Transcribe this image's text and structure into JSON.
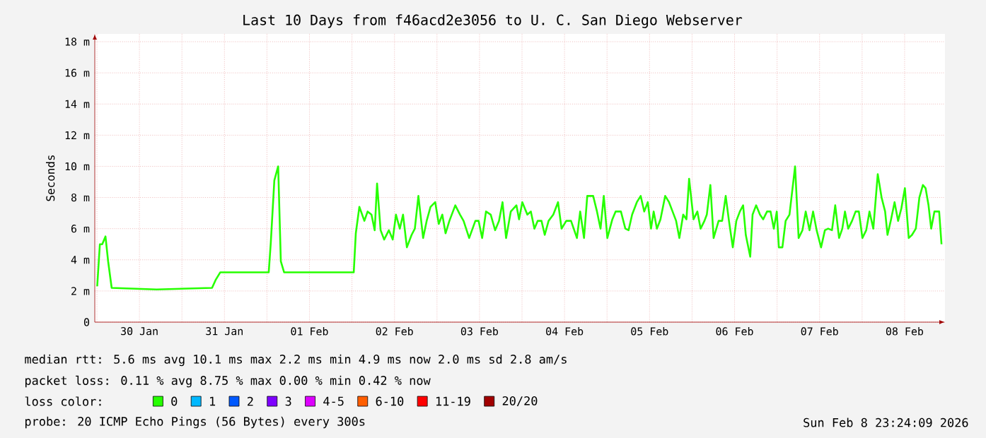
{
  "chart_data": {
    "type": "line",
    "title": "Last 10 Days from f46acd2e3056 to U. C. San Diego Webserver",
    "ylabel": "Seconds",
    "x": [
      "2026-01-30T00:05",
      "2026-01-30T00:50",
      "2026-01-30T01:30",
      "2026-01-30T02:25",
      "2026-01-30T03:10",
      "2026-01-30T04:10",
      "2026-01-30T16:50",
      "2026-01-31T08:30",
      "2026-01-31T09:30",
      "2026-01-31T10:50",
      "2026-02-01T00:30",
      "2026-02-01T01:05",
      "2026-02-01T02:05",
      "2026-02-01T03:10",
      "2026-02-01T03:55",
      "2026-02-01T04:50",
      "2026-02-02T00:30",
      "2026-02-02T01:05",
      "2026-02-02T02:05",
      "2026-02-02T03:30",
      "2026-02-02T04:25",
      "2026-02-02T05:30",
      "2026-02-02T06:25",
      "2026-02-02T07:05",
      "2026-02-02T08:05",
      "2026-02-02T09:05",
      "2026-02-02T10:25",
      "2026-02-02T11:30",
      "2026-02-02T12:25",
      "2026-02-02T13:30",
      "2026-02-02T14:25",
      "2026-02-02T15:30",
      "2026-02-02T16:50",
      "2026-02-02T17:45",
      "2026-02-02T18:45",
      "2026-02-02T20:05",
      "2026-02-02T21:05",
      "2026-02-02T22:10",
      "2026-02-02T23:30",
      "2026-02-03T00:30",
      "2026-02-03T01:30",
      "2026-02-03T02:25",
      "2026-02-03T03:30",
      "2026-02-03T05:10",
      "2026-02-03T06:30",
      "2026-02-03T07:30",
      "2026-02-03T09:05",
      "2026-02-03T10:50",
      "2026-02-03T11:45",
      "2026-02-03T12:45",
      "2026-02-03T13:50",
      "2026-02-03T15:10",
      "2026-02-03T16:25",
      "2026-02-03T17:30",
      "2026-02-03T18:30",
      "2026-02-03T19:30",
      "2026-02-03T20:50",
      "2026-02-03T22:25",
      "2026-02-03T23:10",
      "2026-02-04T00:05",
      "2026-02-04T01:30",
      "2026-02-04T02:30",
      "2026-02-04T03:30",
      "2026-02-04T04:25",
      "2026-02-04T05:30",
      "2026-02-04T06:25",
      "2026-02-04T07:30",
      "2026-02-04T08:50",
      "2026-02-04T10:10",
      "2026-02-04T11:10",
      "2026-02-04T12:30",
      "2026-02-04T13:50",
      "2026-02-04T15:30",
      "2026-02-04T16:25",
      "2026-02-04T17:30",
      "2026-02-04T18:25",
      "2026-02-04T20:05",
      "2026-02-04T21:10",
      "2026-02-04T22:10",
      "2026-02-04T23:05",
      "2026-02-05T00:05",
      "2026-02-05T01:30",
      "2026-02-05T02:25",
      "2026-02-05T03:55",
      "2026-02-05T05:10",
      "2026-02-05T06:05",
      "2026-02-05T07:05",
      "2026-02-05T08:25",
      "2026-02-05T09:30",
      "2026-02-05T10:30",
      "2026-02-05T11:30",
      "2026-02-05T12:25",
      "2026-02-05T13:10",
      "2026-02-05T14:05",
      "2026-02-05T15:05",
      "2026-02-05T16:25",
      "2026-02-05T17:30",
      "2026-02-05T18:30",
      "2026-02-05T19:30",
      "2026-02-05T20:25",
      "2026-02-05T21:30",
      "2026-02-05T22:25",
      "2026-02-05T23:10",
      "2026-02-06T00:25",
      "2026-02-06T01:30",
      "2026-02-06T02:25",
      "2026-02-06T03:30",
      "2026-02-06T04:10",
      "2026-02-06T05:10",
      "2026-02-06T06:05",
      "2026-02-06T07:30",
      "2026-02-06T08:30",
      "2026-02-06T09:30",
      "2026-02-06T10:25",
      "2026-02-06T11:30",
      "2026-02-06T12:30",
      "2026-02-06T13:30",
      "2026-02-06T14:25",
      "2026-02-06T15:10",
      "2026-02-06T16:25",
      "2026-02-06T17:05",
      "2026-02-06T18:05",
      "2026-02-06T19:10",
      "2026-02-06T20:05",
      "2026-02-06T21:10",
      "2026-02-06T22:10",
      "2026-02-06T23:05",
      "2026-02-06T23:55",
      "2026-02-07T00:30",
      "2026-02-07T01:30",
      "2026-02-07T02:25",
      "2026-02-07T03:30",
      "2026-02-07T05:05",
      "2026-02-07T06:05",
      "2026-02-07T07:10",
      "2026-02-07T08:05",
      "2026-02-07T09:10",
      "2026-02-07T10:10",
      "2026-02-07T11:10",
      "2026-02-07T12:25",
      "2026-02-07T13:30",
      "2026-02-07T14:25",
      "2026-02-07T15:30",
      "2026-02-07T16:25",
      "2026-02-07T17:30",
      "2026-02-07T18:25",
      "2026-02-07T19:10",
      "2026-02-07T20:05",
      "2026-02-07T21:10",
      "2026-02-07T22:10",
      "2026-02-07T23:05",
      "2026-02-08T00:05",
      "2026-02-08T01:10",
      "2026-02-08T02:05",
      "2026-02-08T03:10",
      "2026-02-08T04:25",
      "2026-02-08T05:30",
      "2026-02-08T06:30",
      "2026-02-08T07:10",
      "2026-02-08T08:05",
      "2026-02-08T09:10",
      "2026-02-08T10:10",
      "2026-02-08T11:05",
      "2026-02-08T12:05",
      "2026-02-08T13:10",
      "2026-02-08T14:05",
      "2026-02-08T15:10",
      "2026-02-08T16:10",
      "2026-02-08T17:10",
      "2026-02-08T17:55",
      "2026-02-08T18:45",
      "2026-02-08T19:30",
      "2026-02-08T20:25",
      "2026-02-08T21:45",
      "2026-02-08T22:25"
    ],
    "series": [
      {
        "name": "0",
        "color": "#26ff00",
        "values": [
          2.3,
          5.0,
          5.0,
          5.5,
          3.9,
          2.2,
          2.1,
          2.2,
          2.7,
          3.2,
          3.2,
          5.1,
          9.1,
          10.0,
          3.9,
          3.2,
          3.2,
          5.7,
          7.4,
          6.5,
          7.1,
          6.9,
          5.9,
          8.9,
          5.9,
          5.3,
          5.9,
          5.3,
          6.9,
          6.0,
          6.9,
          4.8,
          5.6,
          6.0,
          8.1,
          5.4,
          6.5,
          7.4,
          7.7,
          6.3,
          6.9,
          5.7,
          6.5,
          7.5,
          6.9,
          6.5,
          5.4,
          6.5,
          6.5,
          5.4,
          7.1,
          6.9,
          5.9,
          6.5,
          7.7,
          5.4,
          7.1,
          7.5,
          6.6,
          7.7,
          6.9,
          7.1,
          6.0,
          6.5,
          6.5,
          5.6,
          6.5,
          6.9,
          7.7,
          6.0,
          6.5,
          6.5,
          5.4,
          7.1,
          5.4,
          8.1,
          8.1,
          7.1,
          6.0,
          8.1,
          5.4,
          6.6,
          7.1,
          7.1,
          6.0,
          5.9,
          6.9,
          7.7,
          8.1,
          7.1,
          7.7,
          6.0,
          7.1,
          6.0,
          6.6,
          8.1,
          7.7,
          7.1,
          6.5,
          5.4,
          6.9,
          6.6,
          9.2,
          6.6,
          7.1,
          6.0,
          6.5,
          6.9,
          8.8,
          5.4,
          6.5,
          6.5,
          8.1,
          6.5,
          4.8,
          6.5,
          7.1,
          7.5,
          5.6,
          4.2,
          6.9,
          7.5,
          6.9,
          6.6,
          7.1,
          7.1,
          6.0,
          7.1,
          4.8,
          4.8,
          6.5,
          6.9,
          10.0,
          5.4,
          5.9,
          7.1,
          5.9,
          7.1,
          5.9,
          4.8,
          5.9,
          6.0,
          5.9,
          7.5,
          5.4,
          6.0,
          7.1,
          6.0,
          6.5,
          7.1,
          7.1,
          5.4,
          5.9,
          7.1,
          6.0,
          9.5,
          8.0,
          7.1,
          5.6,
          6.5,
          7.7,
          6.5,
          7.3,
          8.6,
          5.4,
          5.6,
          6.0,
          8.0,
          8.8,
          8.6,
          7.5,
          6.0,
          7.1,
          7.1,
          5.0
        ]
      },
      {
        "name": "1",
        "color": "#00b8ff",
        "values": [
          null,
          null,
          null,
          null,
          null,
          null,
          null,
          null,
          null,
          null,
          null,
          null,
          null,
          null,
          null,
          null,
          null,
          null,
          null,
          null,
          null,
          null,
          null,
          null,
          null,
          null,
          null,
          null,
          null,
          null,
          null,
          null,
          null,
          null,
          null,
          null,
          null,
          null,
          null,
          null,
          null,
          null,
          null,
          null,
          null,
          null,
          null,
          null,
          null,
          null,
          null,
          null,
          null,
          null,
          null,
          null,
          null,
          null,
          null,
          null,
          null,
          null,
          null,
          null,
          null,
          null,
          null,
          null,
          null,
          null,
          null,
          null,
          null,
          null,
          null,
          null,
          null,
          null,
          null,
          null,
          null,
          null,
          null,
          null,
          null,
          null,
          null,
          null,
          null,
          null,
          null,
          null,
          null,
          null,
          null,
          null,
          null,
          null,
          null,
          null,
          null,
          null,
          null,
          null,
          null,
          null,
          null,
          null,
          null,
          null,
          null,
          null,
          null,
          null,
          null,
          null,
          null,
          null,
          null,
          null,
          null,
          null,
          null,
          null,
          null,
          null,
          null,
          null,
          null,
          null,
          null,
          null,
          null,
          null,
          null,
          null,
          null,
          null,
          null,
          null,
          null,
          null,
          null,
          null,
          null,
          null,
          null,
          null,
          null,
          null,
          null,
          null,
          null,
          null,
          null,
          null,
          null,
          null,
          null,
          null,
          null,
          null,
          null,
          null,
          null,
          null,
          null,
          null,
          null,
          null,
          null,
          null,
          null,
          null,
          null
        ]
      },
      {
        "name": "2",
        "color": "#0059ff",
        "values": [
          null,
          null,
          null,
          null,
          null,
          null,
          null,
          null,
          null,
          null,
          null,
          null,
          null,
          null,
          null,
          null,
          null,
          null,
          null,
          null,
          null,
          null,
          null,
          null,
          null,
          null,
          null,
          null,
          null,
          null,
          null,
          null,
          null,
          null,
          null,
          null,
          null,
          null,
          null,
          null,
          null,
          null,
          null,
          null,
          null,
          null,
          null,
          null,
          null,
          null,
          null,
          null,
          null,
          null,
          null,
          null,
          null,
          null,
          null,
          null,
          null,
          null,
          null,
          null,
          null,
          null,
          null,
          null,
          null,
          null,
          null,
          null,
          null,
          null,
          null,
          null,
          null,
          null,
          null,
          null,
          null,
          null,
          null,
          null,
          null,
          null,
          null,
          null,
          null,
          null,
          null,
          null,
          null,
          null,
          null,
          null,
          null,
          null,
          null,
          null,
          null,
          null,
          null,
          null,
          null,
          null,
          null,
          null,
          null,
          null,
          null,
          null,
          null,
          null,
          null,
          null,
          null,
          null,
          null,
          null,
          null,
          null,
          null,
          null,
          null,
          null,
          null,
          null,
          null,
          null,
          null,
          null,
          null,
          null,
          null,
          null,
          null,
          null,
          null,
          null,
          null,
          null,
          null,
          null,
          null,
          null,
          null,
          null,
          null,
          null,
          null,
          null,
          null,
          null,
          null,
          null,
          null,
          null,
          null,
          null,
          null,
          null,
          null,
          null,
          null,
          null,
          null,
          null,
          null,
          null,
          null,
          null,
          null,
          null,
          null
        ]
      },
      {
        "name": "3",
        "color": "#7e00ff",
        "values": [
          null,
          null,
          null,
          null,
          null,
          null,
          null,
          null,
          null,
          null,
          null,
          null,
          null,
          null,
          null,
          null,
          null,
          null,
          null,
          null,
          null,
          null,
          null,
          null,
          null,
          null,
          null,
          null,
          null,
          null,
          null,
          null,
          null,
          null,
          null,
          null,
          null,
          null,
          null,
          null,
          null,
          null,
          null,
          null,
          null,
          null,
          null,
          null,
          null,
          null,
          null,
          null,
          null,
          null,
          null,
          null,
          null,
          null,
          null,
          null,
          null,
          null,
          null,
          null,
          null,
          null,
          null,
          null,
          null,
          null,
          null,
          null,
          null,
          null,
          null,
          null,
          null,
          null,
          null,
          null,
          null,
          null,
          null,
          null,
          null,
          null,
          null,
          null,
          null,
          null,
          null,
          null,
          null,
          null,
          null,
          null,
          null,
          null,
          null,
          null,
          null,
          null,
          null,
          null,
          null,
          null,
          null,
          null,
          null,
          null,
          null,
          null,
          null,
          null,
          null,
          null,
          null,
          null,
          null,
          null,
          null,
          null,
          null,
          null,
          null,
          null,
          null,
          null,
          null,
          null,
          null,
          null,
          null,
          null,
          null,
          null,
          null,
          null,
          null,
          null,
          null,
          null,
          null,
          null,
          null,
          null,
          null,
          null,
          null,
          null,
          null,
          null,
          null,
          null,
          null,
          null,
          null,
          null,
          null,
          null,
          null,
          null,
          null,
          null,
          null,
          null,
          null,
          null,
          null,
          null,
          null,
          null,
          null,
          null,
          null
        ]
      },
      {
        "name": "4-5",
        "color": "#dd00ff",
        "values": [
          null,
          null,
          null,
          null,
          null,
          null,
          null,
          null,
          null,
          null,
          null,
          null,
          null,
          null,
          null,
          null,
          null,
          null,
          null,
          null,
          null,
          null,
          null,
          null,
          null,
          null,
          null,
          null,
          null,
          null,
          null,
          null,
          null,
          null,
          null,
          null,
          null,
          null,
          null,
          null,
          null,
          null,
          null,
          null,
          null,
          null,
          null,
          null,
          null,
          null,
          null,
          null,
          null,
          null,
          null,
          null,
          null,
          null,
          null,
          null,
          null,
          null,
          null,
          null,
          null,
          null,
          null,
          null,
          null,
          null,
          null,
          null,
          null,
          null,
          null,
          null,
          null,
          null,
          null,
          null,
          null,
          null,
          null,
          null,
          null,
          null,
          null,
          null,
          null,
          null,
          null,
          null,
          null,
          null,
          null,
          null,
          null,
          null,
          null,
          null,
          null,
          null,
          null,
          null,
          null,
          null,
          null,
          null,
          null,
          null,
          null,
          null,
          null,
          null,
          null,
          null,
          null,
          null,
          null,
          null,
          null,
          null,
          null,
          null,
          null,
          null,
          null,
          null,
          null,
          null,
          null,
          null,
          null,
          null,
          null,
          null,
          null,
          null,
          null,
          null,
          null,
          null,
          null,
          null,
          null,
          null,
          null,
          null,
          null,
          null,
          null,
          null,
          null,
          null,
          null,
          null,
          null,
          null,
          null,
          null,
          null,
          null,
          null,
          null,
          null,
          null,
          null,
          null,
          null,
          null,
          null,
          null,
          null,
          null,
          null
        ]
      },
      {
        "name": "6-10",
        "color": "#ff5e00",
        "values": [
          null,
          null,
          null,
          null,
          null,
          null,
          null,
          null,
          null,
          null,
          null,
          null,
          null,
          null,
          null,
          null,
          null,
          null,
          null,
          null,
          null,
          null,
          null,
          null,
          null,
          null,
          null,
          null,
          null,
          null,
          null,
          null,
          null,
          null,
          null,
          null,
          null,
          null,
          null,
          null,
          null,
          null,
          null,
          null,
          null,
          null,
          null,
          null,
          null,
          null,
          null,
          null,
          null,
          null,
          null,
          null,
          null,
          null,
          null,
          null,
          null,
          null,
          null,
          null,
          null,
          null,
          null,
          null,
          null,
          null,
          null,
          null,
          null,
          null,
          null,
          null,
          null,
          null,
          null,
          null,
          null,
          null,
          null,
          null,
          null,
          null,
          null,
          null,
          null,
          null,
          null,
          null,
          null,
          null,
          null,
          null,
          null,
          null,
          null,
          null,
          null,
          null,
          null,
          null,
          null,
          null,
          null,
          null,
          null,
          null,
          null,
          null,
          null,
          null,
          null,
          null,
          null,
          null,
          null,
          null,
          null,
          null,
          null,
          null,
          null,
          null,
          null,
          null,
          null,
          null,
          null,
          null,
          null,
          null,
          null,
          null,
          null,
          null,
          null,
          null,
          null,
          null,
          null,
          null,
          null,
          null,
          null,
          null,
          null,
          null,
          null,
          null,
          null,
          null,
          null,
          null,
          null,
          null,
          null,
          null,
          null,
          null,
          null,
          null,
          null,
          null,
          null,
          null,
          null,
          null,
          null,
          null,
          null,
          null,
          null
        ]
      },
      {
        "name": "11-19",
        "color": "#ff0000",
        "values": [
          null,
          null,
          null,
          null,
          null,
          null,
          null,
          null,
          null,
          null,
          null,
          null,
          null,
          null,
          null,
          null,
          null,
          null,
          null,
          null,
          null,
          null,
          null,
          null,
          null,
          null,
          null,
          null,
          null,
          null,
          null,
          null,
          null,
          null,
          null,
          null,
          null,
          null,
          null,
          null,
          null,
          null,
          null,
          null,
          null,
          null,
          null,
          null,
          null,
          null,
          null,
          null,
          null,
          null,
          null,
          null,
          null,
          null,
          null,
          null,
          null,
          null,
          null,
          null,
          null,
          null,
          null,
          null,
          null,
          null,
          null,
          null,
          null,
          null,
          null,
          null,
          null,
          null,
          null,
          null,
          null,
          null,
          null,
          null,
          null,
          null,
          null,
          null,
          null,
          null,
          null,
          null,
          null,
          null,
          null,
          null,
          null,
          null,
          null,
          null,
          null,
          null,
          null,
          null,
          null,
          null,
          null,
          null,
          null,
          null,
          null,
          null,
          null,
          null,
          null,
          null,
          null,
          null,
          null,
          null,
          null,
          null,
          null,
          null,
          null,
          null,
          null,
          null,
          null,
          null,
          null,
          null,
          null,
          null,
          null,
          null,
          null,
          null,
          null,
          null,
          null,
          null,
          null,
          null,
          null,
          null,
          null,
          null,
          null,
          null,
          null,
          null,
          null,
          null,
          null,
          null,
          null,
          null,
          null,
          null,
          null,
          null,
          null,
          null,
          null,
          null,
          null,
          null,
          null,
          null,
          null,
          null,
          null,
          null,
          null
        ]
      },
      {
        "name": "20/20",
        "color": "#a10000",
        "values": [
          null,
          null,
          null,
          null,
          null,
          null,
          null,
          null,
          null,
          null,
          null,
          null,
          null,
          null,
          null,
          null,
          null,
          null,
          null,
          null,
          null,
          null,
          null,
          null,
          null,
          null,
          null,
          null,
          null,
          null,
          null,
          null,
          null,
          null,
          null,
          null,
          null,
          null,
          null,
          null,
          null,
          null,
          null,
          null,
          null,
          null,
          null,
          null,
          null,
          null,
          null,
          null,
          null,
          null,
          null,
          null,
          null,
          null,
          null,
          null,
          null,
          null,
          null,
          null,
          null,
          null,
          null,
          null,
          null,
          null,
          null,
          null,
          null,
          null,
          null,
          null,
          null,
          null,
          null,
          null,
          null,
          null,
          null,
          null,
          null,
          null,
          null,
          null,
          null,
          null,
          null,
          null,
          null,
          null,
          null,
          null,
          null,
          null,
          null,
          null,
          null,
          null,
          null,
          null,
          null,
          null,
          null,
          null,
          null,
          null,
          null,
          null,
          null,
          null,
          null,
          null,
          null,
          null,
          null,
          null,
          null,
          null,
          null,
          null,
          null,
          null,
          null,
          null,
          null,
          null,
          null,
          null,
          null,
          null,
          null,
          null,
          null,
          null,
          null,
          null,
          null,
          null,
          null,
          null,
          null,
          null,
          null,
          null,
          null,
          null,
          null,
          null,
          null,
          null,
          null,
          null,
          null,
          null,
          null,
          null,
          null,
          null,
          null,
          null,
          null,
          null,
          null,
          null,
          null,
          null,
          null,
          null,
          null,
          null,
          null
        ]
      }
    ],
    "xlim": [
      "2026-01-29T23:24",
      "2026-02-08T23:24"
    ],
    "ylim": [
      0,
      18.5
    ],
    "xticks": [
      {
        "value": "2026-01-30T00:00",
        "label": null
      },
      {
        "value": "2026-01-30T12:00",
        "label": "30 Jan"
      },
      {
        "value": "2026-01-31T00:00",
        "label": null
      },
      {
        "value": "2026-01-31T12:00",
        "label": "31 Jan"
      },
      {
        "value": "2026-02-01T00:00",
        "label": null
      },
      {
        "value": "2026-02-01T12:00",
        "label": "01 Feb"
      },
      {
        "value": "2026-02-02T00:00",
        "label": null
      },
      {
        "value": "2026-02-02T12:00",
        "label": "02 Feb"
      },
      {
        "value": "2026-02-03T00:00",
        "label": null
      },
      {
        "value": "2026-02-03T12:00",
        "label": "03 Feb"
      },
      {
        "value": "2026-02-04T00:00",
        "label": null
      },
      {
        "value": "2026-02-04T12:00",
        "label": "04 Feb"
      },
      {
        "value": "2026-02-05T00:00",
        "label": null
      },
      {
        "value": "2026-02-05T12:00",
        "label": "05 Feb"
      },
      {
        "value": "2026-02-06T00:00",
        "label": null
      },
      {
        "value": "2026-02-06T12:00",
        "label": "06 Feb"
      },
      {
        "value": "2026-02-07T00:00",
        "label": null
      },
      {
        "value": "2026-02-07T12:00",
        "label": "07 Feb"
      },
      {
        "value": "2026-02-08T00:00",
        "label": null
      },
      {
        "value": "2026-02-08T12:00",
        "label": "08 Feb"
      }
    ],
    "yticks": [
      0,
      {
        "value": 2,
        "label": "2 m"
      },
      {
        "value": 4,
        "label": "4 m"
      },
      {
        "value": 6,
        "label": "6 m"
      },
      {
        "value": 8,
        "label": "8 m"
      },
      {
        "value": 10,
        "label": "10 m"
      },
      {
        "value": 12,
        "label": "12 m"
      },
      {
        "value": 14,
        "label": "14 m"
      },
      {
        "value": 16,
        "label": "16 m"
      },
      {
        "value": 18,
        "label": "18 m"
      }
    ],
    "grid": true,
    "legend": "bottom",
    "legend_title": "loss color:",
    "annotations": [
      "median rtt:  5.6 ms avg  10.1 ms max  2.2 ms min  4.9 ms now  2.0 ms sd  2.8   am/s",
      "packet loss: 0.11 % avg  8.75 % max  0.00 % min  0.42 % now",
      "probe:       20 ICMP Echo Pings (56 Bytes) every 300s",
      "Sun Feb  8 23:24:09 2026"
    ]
  }
}
